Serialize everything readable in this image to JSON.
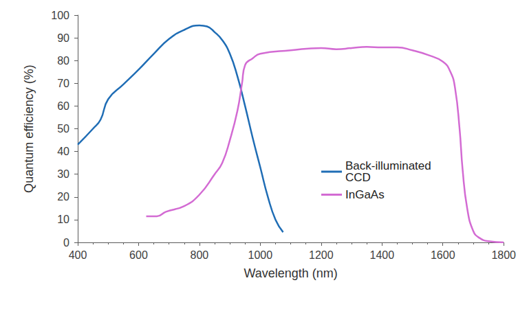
{
  "chart_data": {
    "type": "line",
    "x_label": "Wavelength (nm)",
    "y_label": "Quantum efficiency (%)",
    "xlim": [
      400,
      1800
    ],
    "xticks": [
      400,
      600,
      800,
      1000,
      1200,
      1400,
      1600,
      1800
    ],
    "ylim": [
      0,
      100
    ],
    "yticks": [
      0,
      10,
      20,
      30,
      40,
      50,
      60,
      70,
      80,
      90,
      100
    ],
    "grid": false,
    "legend": "right",
    "series": [
      {
        "name": "Back-illuminated CCD",
        "color": "#1f6db5",
        "x": [
          400,
          450,
          475,
          500,
          550,
          600,
          650,
          700,
          750,
          800,
          825,
          850,
          875,
          900,
          925,
          950,
          975,
          1000,
          1025,
          1050,
          1075
        ],
        "values": [
          43,
          50,
          54,
          63,
          69.5,
          76,
          83,
          89.5,
          93.5,
          95.5,
          95,
          92.5,
          89,
          83,
          73,
          60,
          46,
          33,
          20,
          10,
          4.5
        ]
      },
      {
        "name": "InGaAs",
        "color": "#d36bd3",
        "x": [
          625,
          660,
          690,
          750,
          800,
          850,
          875,
          900,
          925,
          940,
          950,
          975,
          1000,
          1100,
          1200,
          1250,
          1300,
          1350,
          1400,
          1450,
          1500,
          1550,
          1600,
          1625,
          1640,
          1655,
          1665,
          1680,
          1700,
          1720,
          1750,
          1800
        ],
        "values": [
          11.5,
          11.5,
          13.5,
          16,
          21,
          30,
          35,
          45,
          58,
          70,
          78,
          81,
          83,
          84.5,
          85.5,
          85,
          85.5,
          86,
          85.8,
          85.8,
          84.5,
          82.5,
          79.5,
          75,
          68,
          50,
          32,
          15,
          5,
          2,
          0.5,
          0
        ]
      }
    ]
  }
}
